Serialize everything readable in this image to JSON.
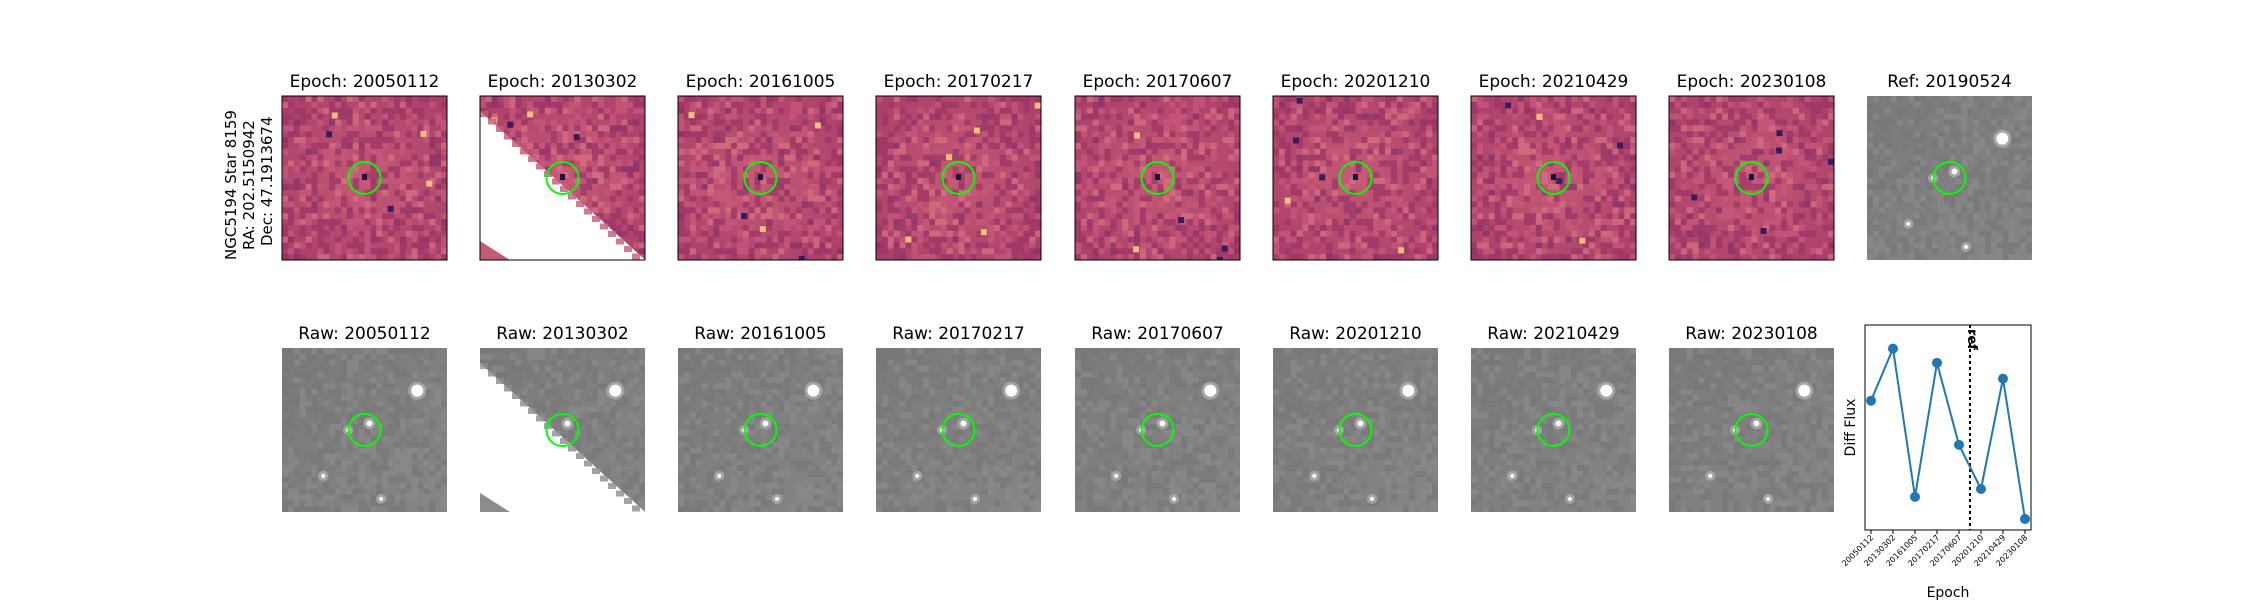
{
  "target": {
    "name": "NGC5194 Star 8159",
    "ra": "RA: 202.5150942",
    "dec": "Dec: 47.1913674"
  },
  "diff_panels": [
    {
      "title": "Epoch: 20050112",
      "style": "diff"
    },
    {
      "title": "Epoch: 20130302",
      "style": "diff-masked"
    },
    {
      "title": "Epoch: 20161005",
      "style": "diff"
    },
    {
      "title": "Epoch: 20170217",
      "style": "diff"
    },
    {
      "title": "Epoch: 20170607",
      "style": "diff"
    },
    {
      "title": "Epoch: 20201210",
      "style": "diff"
    },
    {
      "title": "Epoch: 20210429",
      "style": "diff"
    },
    {
      "title": "Epoch: 20230108",
      "style": "diff"
    },
    {
      "title": "Ref: 20190524",
      "style": "raw"
    }
  ],
  "raw_panels": [
    {
      "title": "Raw: 20050112",
      "style": "raw"
    },
    {
      "title": "Raw: 20130302",
      "style": "raw-masked"
    },
    {
      "title": "Raw: 20161005",
      "style": "raw"
    },
    {
      "title": "Raw: 20170217",
      "style": "raw"
    },
    {
      "title": "Raw: 20170607",
      "style": "raw"
    },
    {
      "title": "Raw: 20201210",
      "style": "raw"
    },
    {
      "title": "Raw: 20210429",
      "style": "raw"
    },
    {
      "title": "Raw: 20230108",
      "style": "raw"
    }
  ],
  "colors": {
    "aperture": "#00ff00",
    "line": "#1f77b4",
    "diff_base": "#b8486b",
    "raw_base": "#7f7f7f"
  },
  "chart_data": {
    "type": "line",
    "categories": [
      "20050112",
      "20130302",
      "20161005",
      "20170217",
      "20170607",
      "20201210",
      "20210429",
      "20230108"
    ],
    "values": [
      0.62,
      0.95,
      0.01,
      0.86,
      0.34,
      0.06,
      0.76,
      -0.13
    ],
    "ylim": [
      -0.2,
      1.1
    ],
    "xlabel": "Epoch",
    "ylabel": "Diff Flux",
    "ref_label": "ref",
    "ref_position": 4.5,
    "grid": false
  }
}
